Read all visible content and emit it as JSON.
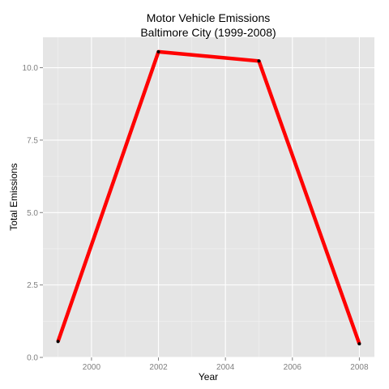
{
  "chart_data": {
    "type": "line",
    "title_line1": "Motor Vehicle Emissions",
    "title_line2": "Baltimore City (1999-2008)",
    "xlabel": "Year",
    "ylabel": "Total Emissions",
    "x": [
      1999,
      2002,
      2005,
      2008
    ],
    "series": [
      {
        "values": [
          0.55,
          10.55,
          10.23,
          0.47
        ],
        "color": "#ff0000"
      }
    ],
    "xlim": [
      1998.55,
      2008.45
    ],
    "ylim": [
      0,
      11.05
    ],
    "x_ticks": [
      2000,
      2002,
      2004,
      2006,
      2008
    ],
    "x_tick_labels": [
      "2000",
      "2002",
      "2004",
      "2006",
      "2008"
    ],
    "y_ticks": [
      0,
      2.5,
      5,
      7.5,
      10
    ],
    "y_tick_labels": [
      "0.0",
      "2.5",
      "5.0",
      "7.5",
      "10.0"
    ],
    "panel_background": "#e5e5e5",
    "grid": true,
    "legend": "none"
  }
}
